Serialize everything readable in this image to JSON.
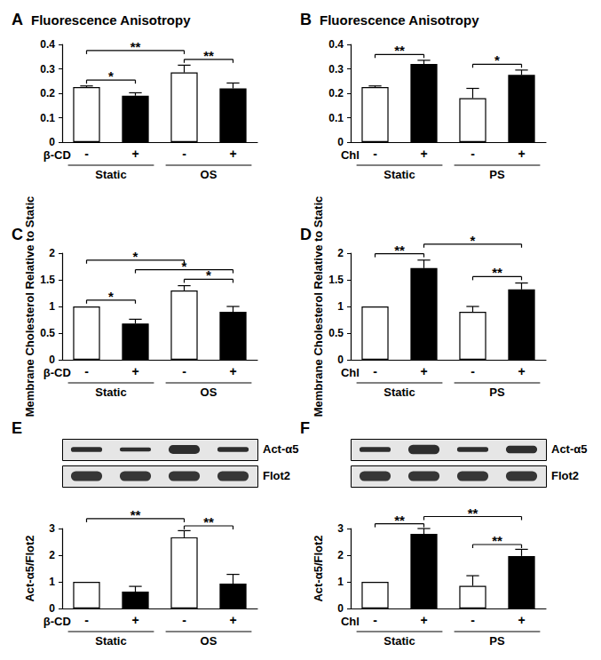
{
  "chart_data": [
    {
      "type": "bar",
      "title": "A",
      "subtitle": "Fluorescence Anisotropy",
      "categories": [
        "-",
        "+",
        "-",
        "+"
      ],
      "values": [
        0.225,
        0.19,
        0.285,
        0.22
      ],
      "errors": [
        0.005,
        0.012,
        0.03,
        0.022
      ],
      "colors": [
        "#ffffff",
        "#000000",
        "#ffffff",
        "#000000"
      ],
      "ylim": [
        0,
        0.4
      ],
      "yticks": [
        0,
        0.1,
        0.2,
        0.3,
        0.4
      ],
      "grid": false,
      "treatment": "β-CD",
      "groups": [
        {
          "name": "Static",
          "from": 0,
          "to": 1
        },
        {
          "name": "OS",
          "from": 2,
          "to": 3
        }
      ],
      "significance": [
        {
          "from": 0,
          "to": 1,
          "label": "*"
        },
        {
          "from": 2,
          "to": 3,
          "label": "**"
        },
        {
          "from": 0,
          "to": 2,
          "label": "**"
        }
      ]
    },
    {
      "type": "bar",
      "title": "B",
      "subtitle": "Fluorescence Anisotropy",
      "categories": [
        "-",
        "+",
        "-",
        "+"
      ],
      "values": [
        0.225,
        0.32,
        0.18,
        0.275
      ],
      "errors": [
        0.005,
        0.015,
        0.04,
        0.02
      ],
      "colors": [
        "#ffffff",
        "#000000",
        "#ffffff",
        "#000000"
      ],
      "ylim": [
        0,
        0.4
      ],
      "yticks": [
        0,
        0.1,
        0.2,
        0.3,
        0.4
      ],
      "grid": false,
      "treatment": "Chl",
      "groups": [
        {
          "name": "Static",
          "from": 0,
          "to": 1
        },
        {
          "name": "PS",
          "from": 2,
          "to": 3
        }
      ],
      "significance": [
        {
          "from": 0,
          "to": 1,
          "label": "**"
        },
        {
          "from": 2,
          "to": 3,
          "label": "*"
        }
      ]
    },
    {
      "type": "bar",
      "title": "C",
      "ylabel": "Membrane Cholesterol Relative to Static",
      "categories": [
        "-",
        "+",
        "-",
        "+"
      ],
      "values": [
        1.0,
        0.68,
        1.3,
        0.9
      ],
      "errors": [
        0,
        0.08,
        0.09,
        0.1
      ],
      "colors": [
        "#ffffff",
        "#000000",
        "#ffffff",
        "#000000"
      ],
      "ylim": [
        0,
        2
      ],
      "yticks": [
        0,
        0.5,
        1,
        1.5,
        2
      ],
      "grid": false,
      "treatment": "β-CD",
      "groups": [
        {
          "name": "Static",
          "from": 0,
          "to": 1
        },
        {
          "name": "OS",
          "from": 2,
          "to": 3
        }
      ],
      "significance": [
        {
          "from": 0,
          "to": 1,
          "label": "*"
        },
        {
          "from": 2,
          "to": 3,
          "label": "*"
        },
        {
          "from": 1,
          "to": 3,
          "label": "*"
        },
        {
          "from": 0,
          "to": 2,
          "label": "*"
        }
      ]
    },
    {
      "type": "bar",
      "title": "D",
      "ylabel": "Membrane Cholesterol Relative to Static",
      "categories": [
        "-",
        "+",
        "-",
        "+"
      ],
      "values": [
        1.0,
        1.72,
        0.9,
        1.32
      ],
      "errors": [
        0,
        0.15,
        0.1,
        0.12
      ],
      "colors": [
        "#ffffff",
        "#000000",
        "#ffffff",
        "#000000"
      ],
      "ylim": [
        0,
        2
      ],
      "yticks": [
        0,
        0.5,
        1,
        1.5,
        2
      ],
      "grid": false,
      "treatment": "Chl",
      "groups": [
        {
          "name": "Static",
          "from": 0,
          "to": 1
        },
        {
          "name": "PS",
          "from": 2,
          "to": 3
        }
      ],
      "significance": [
        {
          "from": 0,
          "to": 1,
          "label": "**"
        },
        {
          "from": 2,
          "to": 3,
          "label": "**"
        },
        {
          "from": 1,
          "to": 3,
          "label": "*"
        }
      ]
    },
    {
      "type": "bar",
      "title": "E",
      "ylabel": "Act-α5/Flot2",
      "categories": [
        "-",
        "+",
        "-",
        "+"
      ],
      "values": [
        1.0,
        0.63,
        2.67,
        0.93
      ],
      "errors": [
        0,
        0.2,
        0.25,
        0.35
      ],
      "colors": [
        "#ffffff",
        "#000000",
        "#ffffff",
        "#000000"
      ],
      "ylim": [
        0,
        3
      ],
      "yticks": [
        0,
        1,
        2,
        3
      ],
      "grid": false,
      "treatment": "β-CD",
      "groups": [
        {
          "name": "Static",
          "from": 0,
          "to": 1
        },
        {
          "name": "OS",
          "from": 2,
          "to": 3
        }
      ],
      "significance": [
        {
          "from": 2,
          "to": 3,
          "label": "**"
        },
        {
          "from": 0,
          "to": 2,
          "label": "**"
        }
      ],
      "blot": {
        "labels": [
          "Act-α5",
          "Flot2"
        ]
      }
    },
    {
      "type": "bar",
      "title": "F",
      "ylabel": "Act-α5/Flot2",
      "categories": [
        "-",
        "+",
        "-",
        "+"
      ],
      "values": [
        1.0,
        2.8,
        0.85,
        1.97
      ],
      "errors": [
        0,
        0.2,
        0.38,
        0.25
      ],
      "colors": [
        "#ffffff",
        "#000000",
        "#ffffff",
        "#000000"
      ],
      "ylim": [
        0,
        3
      ],
      "yticks": [
        0,
        1,
        2,
        3
      ],
      "grid": false,
      "treatment": "Chl",
      "groups": [
        {
          "name": "Static",
          "from": 0,
          "to": 1
        },
        {
          "name": "PS",
          "from": 2,
          "to": 3
        }
      ],
      "significance": [
        {
          "from": 0,
          "to": 1,
          "label": "**"
        },
        {
          "from": 2,
          "to": 3,
          "label": "**"
        },
        {
          "from": 1,
          "to": 3,
          "label": "**"
        }
      ],
      "blot": {
        "labels": [
          "Act-α5",
          "Flot2"
        ]
      }
    }
  ]
}
